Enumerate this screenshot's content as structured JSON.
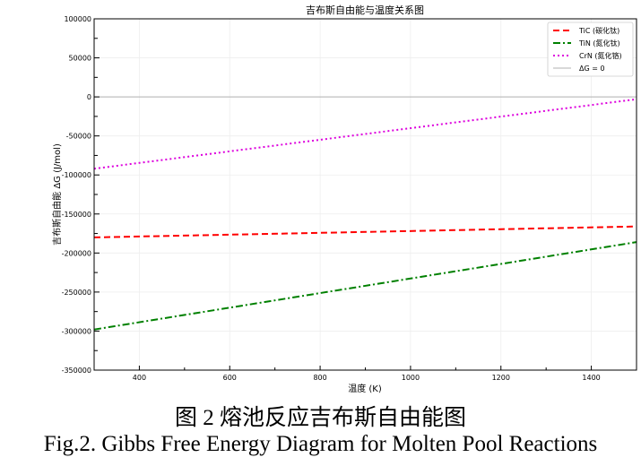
{
  "chart_data": {
    "type": "line",
    "title": "吉布斯自由能与温度关系图",
    "xlabel": "温度 (K)",
    "ylabel": "吉布斯自由能  ΔG (J/mol)",
    "xlim": [
      300,
      1500
    ],
    "ylim": [
      -350000,
      100000
    ],
    "xticks": [
      400,
      600,
      800,
      1000,
      1200,
      1400
    ],
    "yticks": [
      100000,
      50000,
      0,
      -50000,
      -100000,
      -150000,
      -200000,
      -250000,
      -300000,
      -350000
    ],
    "grid": true,
    "legend_position": "top-right",
    "series": [
      {
        "name": "TiC (碳化钛)",
        "x": [
          300,
          1500
        ],
        "y": [
          -180000,
          -166000
        ],
        "color": "#ff0000",
        "style": "dashed"
      },
      {
        "name": "TiN (氮化钛)",
        "x": [
          300,
          1500
        ],
        "y": [
          -298000,
          -186000
        ],
        "color": "#008000",
        "style": "dashdot"
      },
      {
        "name": "CrN (氮化铬)",
        "x": [
          300,
          1500
        ],
        "y": [
          -92000,
          -3000
        ],
        "color": "#dd00dd",
        "style": "dotted"
      },
      {
        "name": "ΔG = 0",
        "x": [
          300,
          1500
        ],
        "y": [
          0,
          0
        ],
        "color": "#b0b0b0",
        "style": "solid"
      }
    ]
  },
  "caption": {
    "chinese": "图 2  熔池反应吉布斯自由能图",
    "english": "Fig.2. Gibbs Free Energy Diagram for Molten Pool Reactions"
  }
}
